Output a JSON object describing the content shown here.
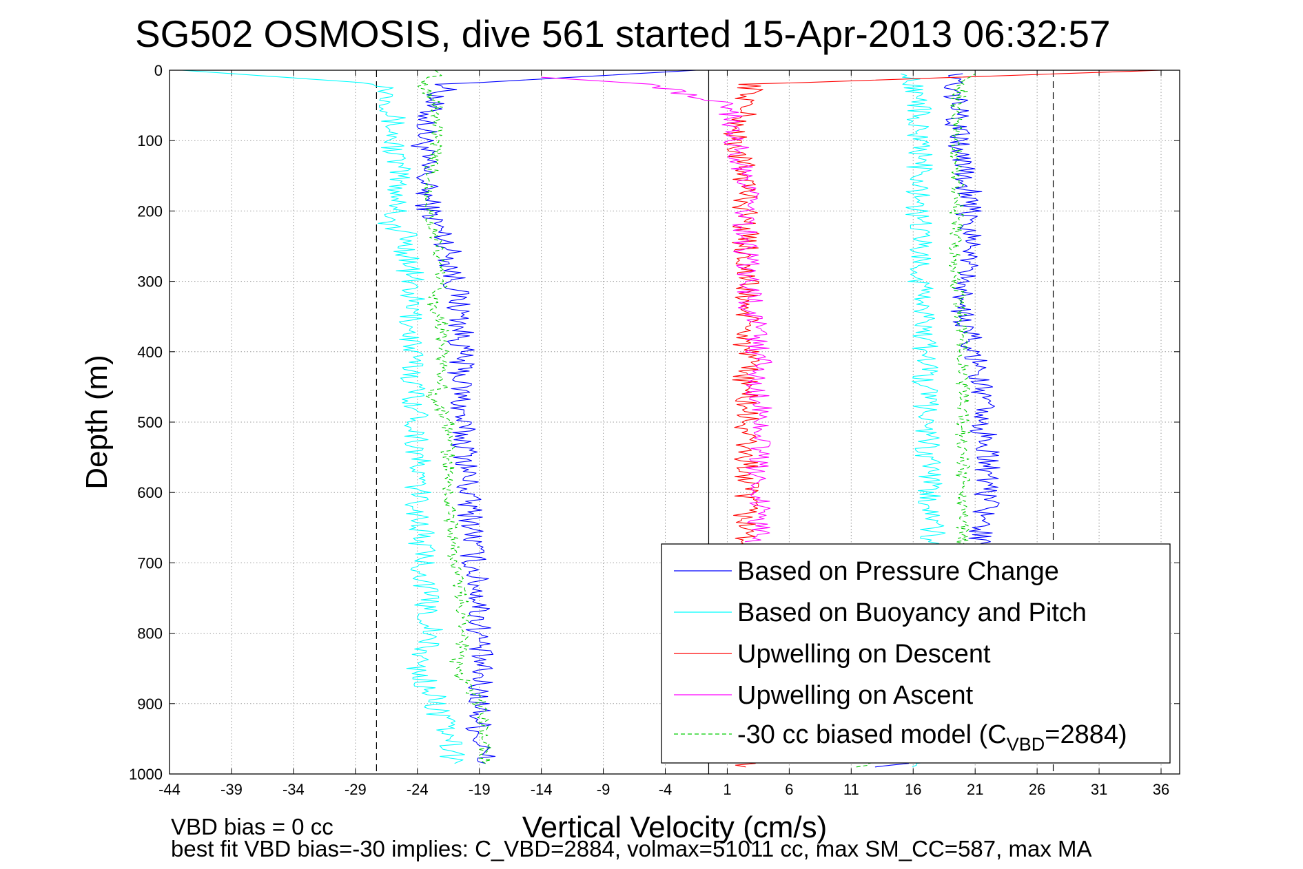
{
  "chart_data": {
    "type": "line",
    "title": "SG502 OSMOSIS, dive 561 started 15-Apr-2013 06:32:57",
    "xlabel": "Vertical Velocity (cm/s)",
    "ylabel": "Depth (m)",
    "xlim": [
      -44,
      37.5
    ],
    "ylim": [
      0,
      1000
    ],
    "y_reversed": true,
    "grid": true,
    "legend_position": "bottom-right",
    "x_ticks": [
      "-44",
      "-39",
      "-34",
      "-29",
      "-24",
      "-19",
      "-14",
      "-9",
      "-4",
      "1",
      "6",
      "11",
      "16",
      "21",
      "26",
      "31",
      "36"
    ],
    "y_ticks": [
      "0",
      "100",
      "200",
      "300",
      "400",
      "500",
      "600",
      "700",
      "800",
      "900",
      "1000"
    ],
    "reference_lines": {
      "zero_velocity_x": -0.5,
      "dashed_limits_x": [
        -27.3,
        27.3
      ]
    },
    "series": [
      {
        "name": "Based on Pressure Change",
        "color": "#0000ff",
        "style": "solid",
        "profiles": [
          {
            "leg": "descent",
            "depth": [
              0,
              20,
              50,
              100,
              150,
              200,
              250,
              300,
              350,
              400,
              450,
              500,
              550,
              600,
              650,
              700,
              750,
              800,
              850,
              900,
              950,
              985
            ],
            "velocity": [
              -1.5,
              -21.5,
              -23,
              -23.5,
              -23.5,
              -23,
              -21.5,
              -21,
              -20.5,
              -20.5,
              -20.5,
              -20.5,
              -20,
              -20,
              -19.5,
              -19.5,
              -19,
              -19,
              -19,
              -19,
              -19,
              -18.5
            ]
          },
          {
            "leg": "ascent",
            "depth": [
              990,
              950,
              900,
              850,
              800,
              750,
              700,
              650,
              600,
              550,
              500,
              450,
              400,
              350,
              300,
              250,
              200,
              150,
              100,
              50,
              20,
              5
            ],
            "velocity": [
              14,
              21,
              21,
              21,
              21,
              21,
              21.5,
              21.5,
              22,
              22,
              21.5,
              21.5,
              21,
              20,
              20,
              20.5,
              20.5,
              20.5,
              19.5,
              19.5,
              19.5,
              20
            ]
          }
        ]
      },
      {
        "name": "Based on Buoyancy and Pitch",
        "color": "#00ffff",
        "style": "solid",
        "profiles": [
          {
            "leg": "descent",
            "depth": [
              0,
              20,
              50,
              100,
              150,
              200,
              220,
              230,
              300,
              400,
              500,
              600,
              700,
              800,
              850,
              900,
              950,
              985
            ],
            "velocity": [
              -43,
              -26.5,
              -26,
              -26,
              -25.5,
              -25.5,
              -26.5,
              -25,
              -24.5,
              -24.5,
              -24,
              -24,
              -23.5,
              -23,
              -24,
              -22.5,
              -21.5,
              -21
            ]
          },
          {
            "leg": "ascent",
            "depth": [
              990,
              950,
              900,
              800,
              700,
              600,
              500,
              400,
              300,
              200,
              100,
              50,
              20,
              5
            ],
            "velocity": [
              17,
              17.5,
              17.5,
              17.5,
              17.5,
              17.5,
              17,
              17,
              16.5,
              16.5,
              16.5,
              16.5,
              16,
              15
            ]
          }
        ]
      },
      {
        "name": "Upwelling on Descent",
        "color": "#ff0000",
        "style": "solid",
        "profiles": [
          {
            "leg": "descent",
            "depth": [
              0,
              20,
              50,
              100,
              150,
              200,
              250,
              300,
              320,
              990
            ],
            "velocity": [
              36,
              3,
              2.5,
              1.5,
              2.5,
              2.5,
              2.5,
              2.5,
              2.5,
              2.5
            ]
          }
        ]
      },
      {
        "name": "Upwelling on Ascent",
        "color": "#ff00ff",
        "style": "solid",
        "profiles": [
          {
            "leg": "ascent",
            "depth": [
              670,
              600,
              500,
              400,
              350,
              300,
              250,
              200,
              150,
              100,
              50,
              20,
              10
            ],
            "velocity": [
              3.5,
              3.5,
              3.5,
              3.5,
              3,
              2.5,
              2.5,
              2.5,
              2.5,
              1.5,
              1,
              -5,
              -14
            ]
          }
        ]
      },
      {
        "name": "-30 cc biased model (C_VBD=2884)",
        "legend_main": "-30 cc biased model (C",
        "legend_sub": "VBD",
        "legend_tail": "=2884)",
        "color": "#00cc00",
        "style": "dashed",
        "profiles": [
          {
            "leg": "descent",
            "depth": [
              0,
              20,
              50,
              100,
              150,
              200,
              300,
              340,
              350,
              400,
              450,
              460,
              500,
              600,
              700,
              800,
              850,
              900,
              950,
              985
            ],
            "velocity": [
              -22,
              -23.5,
              -22.5,
              -22.5,
              -23,
              -23,
              -22,
              -23,
              -22,
              -22,
              -22,
              -23,
              -21.5,
              -21.5,
              -21,
              -20,
              -21,
              -19,
              -18.5,
              -18.5
            ]
          },
          {
            "leg": "ascent",
            "depth": [
              990,
              950,
              900,
              800,
              700,
              600,
              500,
              400,
              300,
              200,
              100,
              50,
              20,
              5
            ],
            "velocity": [
              12,
              20,
              20,
              20,
              20,
              20,
              20,
              20,
              19.5,
              19.5,
              19.5,
              19.5,
              20,
              21
            ]
          }
        ]
      }
    ],
    "footer": {
      "line1": "VBD bias = 0 cc",
      "line2": "best fit VBD bias=-30 implies: C_VBD=2884, volmax=51011 cc, max SM_CC=587, max MA"
    }
  }
}
